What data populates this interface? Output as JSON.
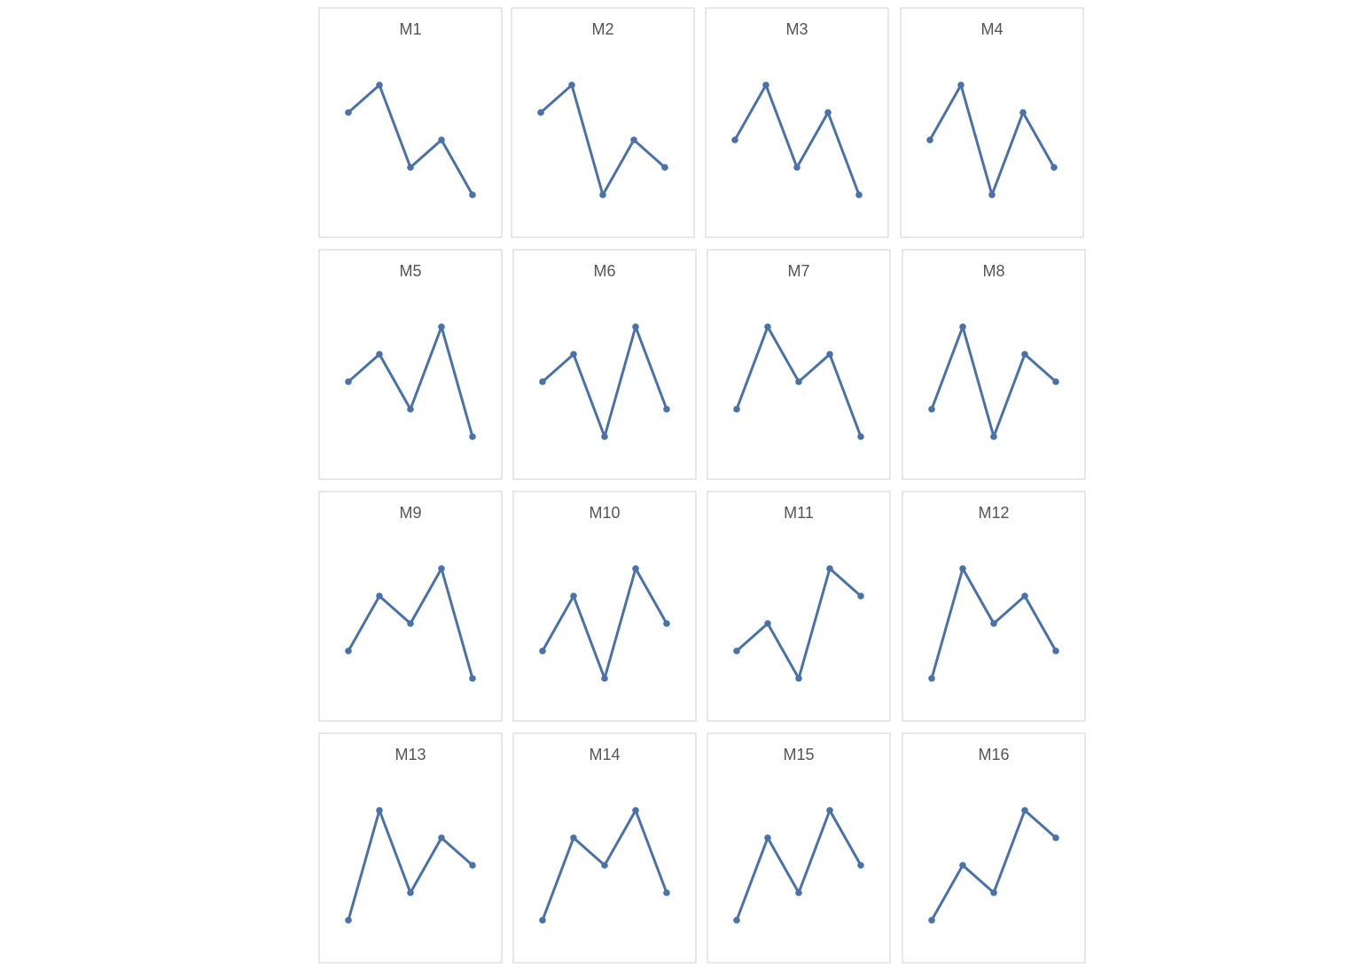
{
  "chart_data": [
    {
      "type": "line",
      "title": "M1",
      "values": [
        4,
        5,
        2,
        3,
        1
      ],
      "color": "#4a72aa"
    },
    {
      "type": "line",
      "title": "M2",
      "values": [
        4,
        5,
        1,
        3,
        2
      ],
      "color": "#4a72aa"
    },
    {
      "type": "line",
      "title": "M3",
      "values": [
        3,
        5,
        2,
        4,
        1
      ],
      "color": "#4a72aa"
    },
    {
      "type": "line",
      "title": "M4",
      "values": [
        3,
        5,
        1,
        4,
        2
      ],
      "color": "#4a72aa"
    },
    {
      "type": "line",
      "title": "M5",
      "values": [
        3,
        4,
        2,
        5,
        1
      ],
      "color": "#4a72aa"
    },
    {
      "type": "line",
      "title": "M6",
      "values": [
        3,
        4,
        1,
        5,
        2
      ],
      "color": "#4a72aa"
    },
    {
      "type": "line",
      "title": "M7",
      "values": [
        2,
        5,
        3,
        4,
        1
      ],
      "color": "#4a72aa"
    },
    {
      "type": "line",
      "title": "M8",
      "values": [
        2,
        5,
        1,
        4,
        3
      ],
      "color": "#4a72aa"
    },
    {
      "type": "line",
      "title": "M9",
      "values": [
        2,
        4,
        3,
        5,
        1
      ],
      "color": "#4a72aa"
    },
    {
      "type": "line",
      "title": "M10",
      "values": [
        2,
        4,
        1,
        5,
        3
      ],
      "color": "#4a72aa"
    },
    {
      "type": "line",
      "title": "M11",
      "values": [
        2,
        3,
        1,
        5,
        4
      ],
      "color": "#4a72aa"
    },
    {
      "type": "line",
      "title": "M12",
      "values": [
        1,
        5,
        3,
        4,
        2
      ],
      "color": "#4a72aa"
    },
    {
      "type": "line",
      "title": "M13",
      "values": [
        1,
        5,
        2,
        4,
        3
      ],
      "color": "#4a72aa"
    },
    {
      "type": "line",
      "title": "M14",
      "values": [
        1,
        4,
        3,
        5,
        2
      ],
      "color": "#4a72aa"
    },
    {
      "type": "line",
      "title": "M15",
      "values": [
        1,
        4,
        2,
        5,
        3
      ],
      "color": "#4a72aa"
    },
    {
      "type": "line",
      "title": "M16",
      "values": [
        1,
        3,
        2,
        5,
        4
      ],
      "color": "#4a72aa"
    }
  ]
}
